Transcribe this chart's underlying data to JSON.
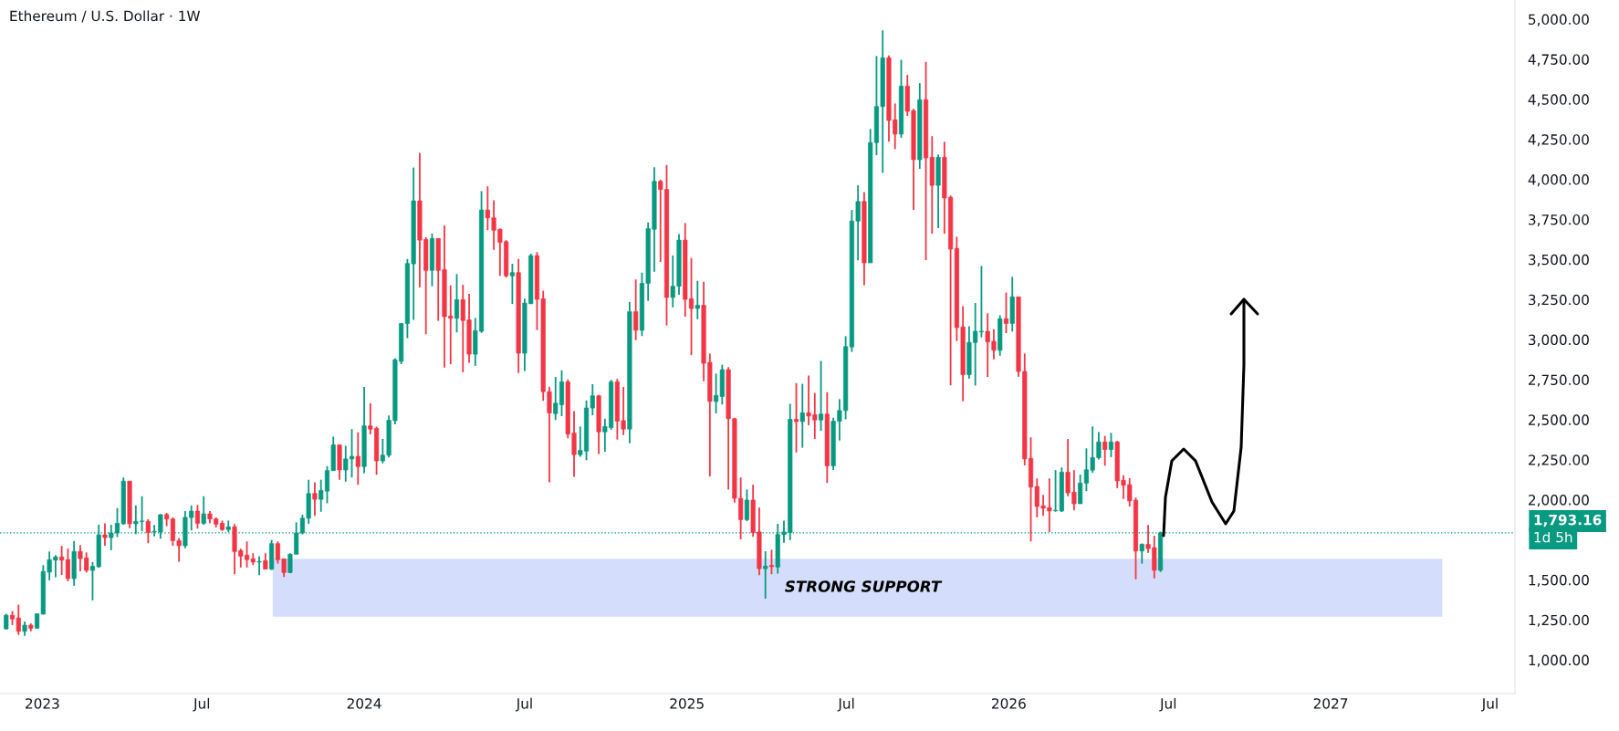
{
  "chart_data": {
    "type": "candlestick",
    "title": "Ethereum / U.S. Dollar · 1W",
    "colors": [
      "#089981",
      "#f23645",
      "#f23645",
      "#089981",
      "#f23645",
      "#089981",
      "#089981",
      "#089981",
      "#089981",
      "#f23645",
      "#f23645",
      "#089981",
      "#f23645",
      "#f23645",
      "#089981",
      "#089981",
      "#f23645",
      "#089981",
      "#089981",
      "#089981",
      "#f23645",
      "#089981",
      "#089981",
      "#f23645",
      "#089981",
      "#089981",
      "#f23645",
      "#f23645",
      "#f23645",
      "#089981",
      "#089981",
      "#f23645",
      "#089981",
      "#f23645",
      "#f23645",
      "#f23645",
      "#089981",
      "#f23645",
      "#f23645",
      "#f23645",
      "#f23645",
      "#089981",
      "#f23645",
      "#089981",
      "#f23645",
      "#f23645",
      "#089981",
      "#089981",
      "#089981",
      "#089981",
      "#f23645",
      "#089981",
      "#089981",
      "#089981",
      "#f23645",
      "#089981",
      "#089981",
      "#f23645",
      "#089981",
      "#f23645",
      "#f23645",
      "#089981",
      "#089981",
      "#089981",
      "#089981",
      "#089981",
      "#089981",
      "#f23645",
      "#f23645",
      "#089981",
      "#f23645",
      "#f23645",
      "#f23645",
      "#089981",
      "#f23645",
      "#f23645",
      "#089981",
      "#089981",
      "#f23645",
      "#f23645",
      "#f23645",
      "#f23645",
      "#089981",
      "#f23645",
      "#089981",
      "#089981",
      "#f23645",
      "#f23645",
      "#f23645",
      "#089981",
      "#089981",
      "#f23645",
      "#f23645",
      "#089981",
      "#089981",
      "#089981",
      "#f23645",
      "#089981",
      "#089981",
      "#f23645",
      "#f23645",
      "#089981",
      "#f23645",
      "#089981",
      "#089981",
      "#089981",
      "#f23645",
      "#f23645",
      "#089981",
      "#089981",
      "#f23645",
      "#f23645",
      "#089981",
      "#f23645",
      "#f23645",
      "#089981",
      "#089981",
      "#f23645",
      "#f23645",
      "#f23645",
      "#089981",
      "#f23645",
      "#f23645",
      "#089981",
      "#f23645",
      "#089981",
      "#089981",
      "#089981",
      "#f23645",
      "#089981",
      "#f23645",
      "#f23645",
      "#089981",
      "#f23645",
      "#089981",
      "#089981",
      "#089981",
      "#089981",
      "#089981",
      "#f23645",
      "#089981",
      "#089981",
      "#089981",
      "#f23645",
      "#f23645",
      "#089981",
      "#f23645",
      "#f23645",
      "#089981",
      "#f23645",
      "#f23645",
      "#089981",
      "#f23645",
      "#f23645",
      "#f23645",
      "#f23645",
      "#089981",
      "#089981",
      "#089981",
      "#f23645",
      "#f23645",
      "#089981",
      "#f23645",
      "#089981",
      "#f23645",
      "#f23645",
      "#f23645",
      "#f23645",
      "#f23645",
      "#f23645",
      "#089981",
      "#089981",
      "#f23645",
      "#f23645",
      "#089981",
      "#089981",
      "#089981",
      "#089981",
      "#f23645",
      "#089981",
      "#f23645",
      "#f23645",
      "#f23645",
      "#f23645",
      "#089981",
      "#f23645",
      "#f23645",
      "#089981"
    ],
    "x": [
      "2022-11-21",
      "2022-11-28",
      "2022-12-05",
      "2022-12-12",
      "2022-12-19",
      "2022-12-26",
      "2023-01-02",
      "2023-01-09",
      "2023-01-16",
      "2023-01-23",
      "2023-01-30",
      "2023-02-06",
      "2023-02-13",
      "2023-02-20",
      "2023-02-27",
      "2023-03-06",
      "2023-03-13",
      "2023-03-20",
      "2023-03-27",
      "2023-04-03",
      "2023-04-10",
      "2023-04-17",
      "2023-04-24",
      "2023-05-01",
      "2023-05-08",
      "2023-05-15",
      "2023-05-22",
      "2023-05-29",
      "2023-06-05",
      "2023-06-12",
      "2023-06-19",
      "2023-06-26",
      "2023-07-03",
      "2023-07-10",
      "2023-07-17",
      "2023-07-24",
      "2023-07-31",
      "2023-08-07",
      "2023-08-14",
      "2023-08-21",
      "2023-08-28",
      "2023-09-04",
      "2023-09-11",
      "2023-09-18",
      "2023-09-25",
      "2023-10-02",
      "2023-10-09",
      "2023-10-16",
      "2023-10-23",
      "2023-10-30",
      "2023-11-06",
      "2023-11-13",
      "2023-11-20",
      "2023-11-27",
      "2023-12-04",
      "2023-12-11",
      "2023-12-18",
      "2023-12-25",
      "2024-01-01",
      "2024-01-08",
      "2024-01-15",
      "2024-01-22",
      "2024-01-29",
      "2024-02-05",
      "2024-02-12",
      "2024-02-19",
      "2024-02-26",
      "2024-03-04",
      "2024-03-11",
      "2024-03-18",
      "2024-03-25",
      "2024-04-01",
      "2024-04-08",
      "2024-04-15",
      "2024-04-22",
      "2024-04-29",
      "2024-05-06",
      "2024-05-13",
      "2024-05-20",
      "2024-05-27",
      "2024-06-03",
      "2024-06-10",
      "2024-06-17",
      "2024-06-24",
      "2024-07-01",
      "2024-07-08",
      "2024-07-15",
      "2024-07-22",
      "2024-07-29",
      "2024-08-05",
      "2024-08-12",
      "2024-08-19",
      "2024-08-26",
      "2024-09-02",
      "2024-09-09",
      "2024-09-16",
      "2024-09-23",
      "2024-09-30",
      "2024-10-07",
      "2024-10-14",
      "2024-10-21",
      "2024-10-28",
      "2024-11-04",
      "2024-11-11",
      "2024-11-18",
      "2024-11-25",
      "2024-12-02",
      "2024-12-09",
      "2024-12-16",
      "2024-12-23",
      "2024-12-30",
      "2025-01-06",
      "2025-01-13",
      "2025-01-20",
      "2025-01-27",
      "2025-02-03",
      "2025-02-10",
      "2025-02-17",
      "2025-02-24",
      "2025-03-03",
      "2025-03-10",
      "2025-03-17",
      "2025-03-24",
      "2025-03-31",
      "2025-04-07",
      "2025-04-14",
      "2025-04-21",
      "2025-04-28",
      "2025-05-05",
      "2025-05-12",
      "2025-05-19",
      "2025-05-26",
      "2025-06-02",
      "2025-06-09",
      "2025-06-16",
      "2025-06-23",
      "2025-06-30",
      "2025-07-07",
      "2025-07-14",
      "2025-07-21",
      "2025-07-28",
      "2025-08-04",
      "2025-08-11",
      "2025-08-18",
      "2025-08-25",
      "2025-09-01",
      "2025-09-08",
      "2025-09-15",
      "2025-09-22",
      "2025-09-29",
      "2025-10-06",
      "2025-10-13",
      "2025-10-20",
      "2025-10-27",
      "2025-11-03",
      "2025-11-10",
      "2025-11-17",
      "2025-11-24",
      "2025-12-01",
      "2025-12-08",
      "2025-12-15",
      "2025-12-22",
      "2025-12-29",
      "2026-01-05",
      "2026-01-12",
      "2026-01-19",
      "2026-01-26",
      "2026-02-02",
      "2026-02-09",
      "2026-02-16",
      "2026-02-23",
      "2026-03-02",
      "2026-03-09",
      "2026-03-16",
      "2026-03-23",
      "2026-03-30",
      "2026-04-06",
      "2026-04-13",
      "2026-04-20",
      "2026-04-27",
      "2026-05-04",
      "2026-05-11",
      "2026-05-18",
      "2026-05-25",
      "2026-06-01",
      "2026-06-08",
      "2026-06-15",
      "2026-06-22"
    ],
    "ohlc": [
      [
        1194,
        1288,
        1190,
        1279
      ],
      [
        1279,
        1305,
        1218,
        1256
      ],
      [
        1262,
        1345,
        1156,
        1179
      ],
      [
        1179,
        1240,
        1150,
        1217
      ],
      [
        1217,
        1228,
        1179,
        1198
      ],
      [
        1198,
        1290,
        1196,
        1288
      ],
      [
        1286,
        1592,
        1284,
        1552
      ],
      [
        1548,
        1677,
        1497,
        1626
      ],
      [
        1623,
        1654,
        1516,
        1643
      ],
      [
        1643,
        1712,
        1531,
        1623
      ],
      [
        1626,
        1695,
        1491,
        1508
      ],
      [
        1508,
        1742,
        1463,
        1677
      ],
      [
        1677,
        1717,
        1554,
        1633
      ],
      [
        1637,
        1671,
        1546,
        1559
      ],
      [
        1559,
        1611,
        1372,
        1584
      ],
      [
        1582,
        1844,
        1575,
        1781
      ],
      [
        1781,
        1853,
        1713,
        1764
      ],
      [
        1764,
        1844,
        1685,
        1793
      ],
      [
        1793,
        1948,
        1767,
        1853
      ],
      [
        1850,
        2139,
        1844,
        2116
      ],
      [
        2116,
        2116,
        1822,
        1850
      ],
      [
        1850,
        1965,
        1786,
        1865
      ],
      [
        1865,
        2022,
        1803,
        1867
      ],
      [
        1865,
        1878,
        1729,
        1795
      ],
      [
        1800,
        1842,
        1772,
        1803
      ],
      [
        1799,
        1910,
        1757,
        1907
      ],
      [
        1907,
        1918,
        1835,
        1880
      ],
      [
        1880,
        1890,
        1713,
        1745
      ],
      [
        1745,
        1761,
        1613,
        1713
      ],
      [
        1713,
        1929,
        1697,
        1890
      ],
      [
        1889,
        1965,
        1809,
        1929
      ],
      [
        1929,
        1968,
        1820,
        1853
      ],
      [
        1853,
        2022,
        1844,
        1912
      ],
      [
        1912,
        1929,
        1853,
        1880
      ],
      [
        1880,
        1890,
        1827,
        1848
      ],
      [
        1853,
        1870,
        1805,
        1814
      ],
      [
        1814,
        1870,
        1799,
        1831
      ],
      [
        1831,
        1848,
        1535,
        1677
      ],
      [
        1682,
        1695,
        1577,
        1648
      ],
      [
        1654,
        1740,
        1577,
        1626
      ],
      [
        1631,
        1666,
        1592,
        1611
      ],
      [
        1611,
        1648,
        1529,
        1615
      ],
      [
        1620,
        1666,
        1565,
        1567
      ],
      [
        1567,
        1749,
        1561,
        1726
      ],
      [
        1726,
        1740,
        1602,
        1626
      ],
      [
        1631,
        1631,
        1518,
        1546
      ],
      [
        1546,
        1666,
        1541,
        1660
      ],
      [
        1660,
        1859,
        1660,
        1793
      ],
      [
        1793,
        1907,
        1784,
        1885
      ],
      [
        1885,
        2125,
        1850,
        2039
      ],
      [
        2039,
        2109,
        1900,
        2003
      ],
      [
        2003,
        2125,
        1925,
        2058
      ],
      [
        2054,
        2210,
        1978,
        2182
      ],
      [
        2182,
        2394,
        2180,
        2343
      ],
      [
        2343,
        2343,
        2125,
        2186
      ],
      [
        2186,
        2337,
        2113,
        2255
      ],
      [
        2255,
        2441,
        2139,
        2271
      ],
      [
        2271,
        2421,
        2094,
        2207
      ],
      [
        2207,
        2704,
        2166,
        2461
      ],
      [
        2461,
        2603,
        2409,
        2441
      ],
      [
        2445,
        2457,
        2156,
        2243
      ],
      [
        2243,
        2380,
        2227,
        2278
      ],
      [
        2278,
        2526,
        2264,
        2496
      ],
      [
        2494,
        2883,
        2471,
        2874
      ],
      [
        2864,
        3103,
        2847,
        3100
      ],
      [
        3100,
        3503,
        3009,
        3475
      ],
      [
        3473,
        4074,
        3123,
        3866
      ],
      [
        3866,
        4165,
        3327,
        3621
      ],
      [
        3625,
        3640,
        3033,
        3432
      ],
      [
        3432,
        3662,
        3333,
        3631
      ],
      [
        3631,
        3631,
        3117,
        3432
      ],
      [
        3437,
        3713,
        2826,
        3143
      ],
      [
        3147,
        3338,
        2846,
        3133
      ],
      [
        3133,
        3409,
        3045,
        3249
      ],
      [
        3249,
        3342,
        2796,
        3119
      ],
      [
        3123,
        3286,
        2856,
        2909
      ],
      [
        2909,
        3135,
        2836,
        3056
      ],
      [
        3052,
        3927,
        3042,
        3809
      ],
      [
        3809,
        3957,
        3683,
        3760
      ],
      [
        3760,
        3870,
        3561,
        3683
      ],
      [
        3689,
        3693,
        3398,
        3607
      ],
      [
        3611,
        3621,
        3388,
        3398
      ],
      [
        3398,
        3473,
        3222,
        3418
      ],
      [
        3418,
        3503,
        2792,
        2915
      ],
      [
        2915,
        3255,
        2804,
        3228
      ],
      [
        3224,
        3536,
        3224,
        3524
      ],
      [
        3524,
        3546,
        3059,
        3251
      ],
      [
        3255,
        3305,
        2618,
        2675
      ],
      [
        2675,
        2706,
        2109,
        2542
      ],
      [
        2538,
        2767,
        2498,
        2603
      ],
      [
        2593,
        2808,
        2522,
        2736
      ],
      [
        2736,
        2751,
        2384,
        2410
      ],
      [
        2416,
        2553,
        2143,
        2282
      ],
      [
        2282,
        2457,
        2268,
        2308
      ],
      [
        2304,
        2620,
        2247,
        2573
      ],
      [
        2573,
        2722,
        2528,
        2649
      ],
      [
        2649,
        2655,
        2285,
        2424
      ],
      [
        2424,
        2506,
        2300,
        2457
      ],
      [
        2451,
        2749,
        2437,
        2736
      ],
      [
        2736,
        2755,
        2376,
        2491
      ],
      [
        2494,
        2704,
        2404,
        2441
      ],
      [
        2441,
        3235,
        2353,
        3174
      ],
      [
        3174,
        3375,
        2996,
        3058
      ],
      [
        3058,
        3418,
        3022,
        3351
      ],
      [
        3351,
        3731,
        3242,
        3693
      ],
      [
        3689,
        4076,
        3424,
        3988
      ],
      [
        3988,
        3998,
        3485,
        3937
      ],
      [
        3937,
        4090,
        3088,
        3263
      ],
      [
        3263,
        3525,
        3201,
        3333
      ],
      [
        3333,
        3658,
        3280,
        3621
      ],
      [
        3621,
        3727,
        3143,
        3251
      ],
      [
        3255,
        3509,
        2903,
        3194
      ],
      [
        3194,
        3367,
        3127,
        3214
      ],
      [
        3214,
        3361,
        2740,
        2852
      ],
      [
        2858,
        2913,
        2145,
        2614
      ],
      [
        2614,
        2788,
        2540,
        2651
      ],
      [
        2645,
        2843,
        2595,
        2812
      ],
      [
        2812,
        2828,
        2064,
        2506
      ],
      [
        2506,
        2512,
        1982,
        2009
      ],
      [
        2009,
        2139,
        1753,
        1876
      ],
      [
        1876,
        2064,
        1866,
        1998
      ],
      [
        1998,
        2094,
        1769,
        1795
      ],
      [
        1799,
        1952,
        1529,
        1570
      ],
      [
        1570,
        1678,
        1383,
        1586
      ],
      [
        1590,
        1688,
        1535,
        1582
      ],
      [
        1580,
        1850,
        1539,
        1783
      ],
      [
        1783,
        1870,
        1732,
        1799
      ],
      [
        1795,
        2599,
        1748,
        2502
      ],
      [
        2502,
        2728,
        2295,
        2488
      ],
      [
        2488,
        2724,
        2325,
        2543
      ],
      [
        2543,
        2775,
        2465,
        2523
      ],
      [
        2531,
        2667,
        2380,
        2498
      ],
      [
        2498,
        2867,
        2431,
        2535
      ],
      [
        2535,
        2671,
        2105,
        2212
      ],
      [
        2212,
        2512,
        2186,
        2490
      ],
      [
        2490,
        2628,
        2370,
        2557
      ],
      [
        2557,
        3021,
        2502,
        2956
      ],
      [
        2954,
        3809,
        2923,
        3740
      ],
      [
        3740,
        3964,
        3495,
        3862
      ],
      [
        3862,
        3921,
        3340,
        3479
      ],
      [
        3479,
        4315,
        3479,
        4230
      ],
      [
        4230,
        4770,
        4151,
        4455
      ],
      [
        4455,
        4930,
        4041,
        4759
      ],
      [
        4759,
        4774,
        4235,
        4368
      ],
      [
        4372,
        4474,
        4189,
        4283
      ],
      [
        4283,
        4747,
        4260,
        4582
      ],
      [
        4582,
        4652,
        4396,
        4425
      ],
      [
        4429,
        4440,
        3810,
        4123
      ],
      [
        4123,
        4601,
        4066,
        4497
      ],
      [
        4497,
        4734,
        3496,
        4134
      ],
      [
        4138,
        4270,
        3661,
        3963
      ],
      [
        3963,
        4156,
        3696,
        4138
      ],
      [
        4138,
        4235,
        3661,
        3884
      ],
      [
        3888,
        3899,
        2715,
        3565
      ],
      [
        3569,
        3642,
        2991,
        3075
      ],
      [
        3079,
        3209,
        2615,
        2781
      ],
      [
        2781,
        3083,
        2756,
        2982
      ],
      [
        2982,
        3228,
        2713,
        3052
      ],
      [
        3048,
        3460,
        3014,
        3052
      ],
      [
        3052,
        3164,
        2767,
        2985
      ],
      [
        2989,
        3064,
        2876,
        2933
      ],
      [
        2933,
        3152,
        2899,
        3130
      ],
      [
        3130,
        3294,
        3040,
        3101
      ],
      [
        3101,
        3392,
        3050,
        3267
      ],
      [
        3267,
        3267,
        2769,
        2801
      ],
      [
        2801,
        2913,
        2215,
        2255
      ],
      [
        2259,
        2390,
        1740,
        2079
      ],
      [
        2083,
        2133,
        1890,
        1958
      ],
      [
        1962,
        2031,
        1900,
        1947
      ],
      [
        1951,
        2133,
        1799,
        1930
      ],
      [
        1932,
        2185,
        1925,
        1934
      ],
      [
        1930,
        2202,
        1924,
        2172
      ],
      [
        2172,
        2379,
        2022,
        2043
      ],
      [
        2047,
        2185,
        1934,
        1975
      ],
      [
        1975,
        2157,
        1975,
        2104
      ],
      [
        2104,
        2321,
        2054,
        2187
      ],
      [
        2185,
        2458,
        2168,
        2263
      ],
      [
        2263,
        2422,
        2251,
        2361
      ],
      [
        2361,
        2399,
        2213,
        2314
      ],
      [
        2314,
        2418,
        2266,
        2361
      ],
      [
        2361,
        2367,
        2073,
        2118
      ],
      [
        2122,
        2153,
        2005,
        2090
      ],
      [
        2094,
        2134,
        1958,
        1993
      ],
      [
        1997,
        2014,
        1504,
        1680
      ],
      [
        1680,
        1727,
        1601,
        1722
      ],
      [
        1722,
        1843,
        1669,
        1695
      ],
      [
        1701,
        1775,
        1509,
        1560
      ],
      [
        1560,
        1801,
        1549,
        1793.16
      ]
    ],
    "xlim": [
      "2022-11-14",
      "2027-07-29"
    ],
    "xticks": [
      {
        "value": "2023-01-01",
        "label": "2023"
      },
      {
        "value": "2023-07-01",
        "label": "Jul"
      },
      {
        "value": "2024-01-01",
        "label": "2024"
      },
      {
        "value": "2024-07-01",
        "label": "Jul"
      },
      {
        "value": "2025-01-01",
        "label": "2025"
      },
      {
        "value": "2025-07-01",
        "label": "Jul"
      },
      {
        "value": "2026-01-01",
        "label": "2026"
      },
      {
        "value": "2026-07-01",
        "label": "Jul"
      },
      {
        "value": "2027-01-01",
        "label": "2027"
      },
      {
        "value": "2027-07-01",
        "label": "Jul"
      }
    ],
    "ylim": [
      790,
      5120
    ],
    "yticks": [
      {
        "value": 1000,
        "label": "1,000.00"
      },
      {
        "value": 1250,
        "label": "1,250.00"
      },
      {
        "value": 1500,
        "label": "1,500.00"
      },
      {
        "value": 2000,
        "label": "2,000.00"
      },
      {
        "value": 2250,
        "label": "2,250.00"
      },
      {
        "value": 2500,
        "label": "2,500.00"
      },
      {
        "value": 2750,
        "label": "2,750.00"
      },
      {
        "value": 3000,
        "label": "3,000.00"
      },
      {
        "value": 3250,
        "label": "3,250.00"
      },
      {
        "value": 3500,
        "label": "3,500.00"
      },
      {
        "value": 3750,
        "label": "3,750.00"
      },
      {
        "value": 4000,
        "label": "4,000.00"
      },
      {
        "value": 4250,
        "label": "4,250.00"
      },
      {
        "value": 4500,
        "label": "4,500.00"
      },
      {
        "value": 4750,
        "label": "4,750.00"
      },
      {
        "value": 5000,
        "label": "5,000.00"
      }
    ],
    "ref_lines": [
      {
        "axis": "y",
        "value": 1793.16,
        "label": "1,793.16",
        "color": "#089981",
        "line_style": "dotted"
      }
    ],
    "bands": [
      {
        "axis": "y",
        "from": 1270,
        "to": 1632,
        "label": "STRONG SUPPORT",
        "color": "#d4defc"
      }
    ],
    "annotations": [
      "1d 5h"
    ],
    "grid": false,
    "legend": false
  }
}
